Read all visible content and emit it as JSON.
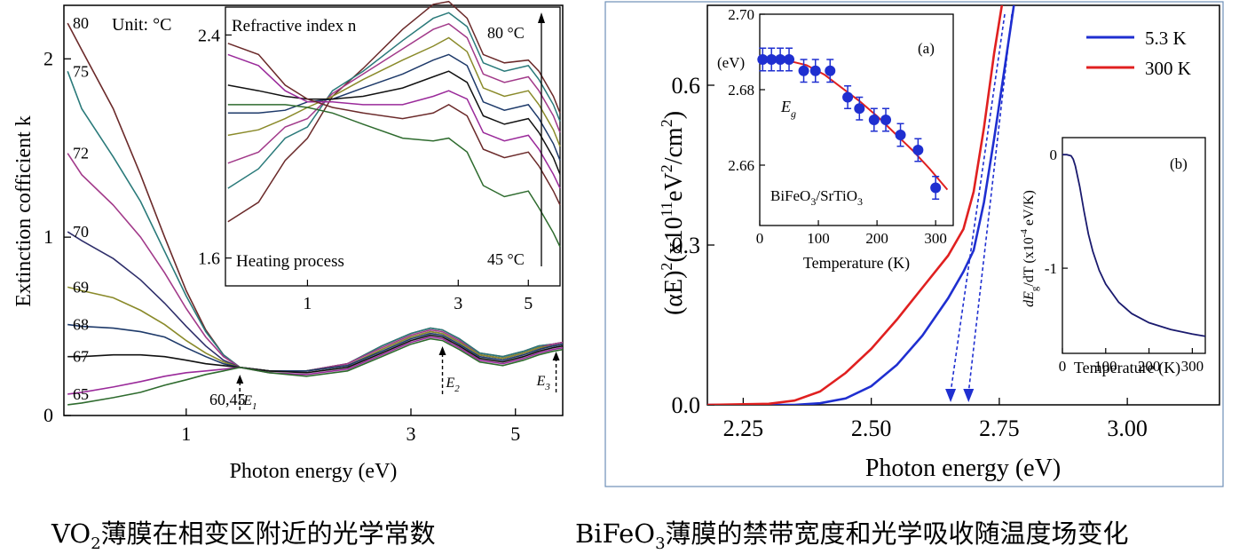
{
  "captions": {
    "left_pre": "VO",
    "left_sub": "2",
    "left_post": "薄膜在相变区附近的光学常数",
    "right_pre": "BiFeO",
    "right_sub": "3",
    "right_post": "薄膜的禁带宽度和光学吸收随温度场变化"
  },
  "chart_data": [
    {
      "id": "vo2_k",
      "type": "line",
      "xlabel": "Photon energy (eV)",
      "ylabel": "Extinction cofficient k",
      "xscale": "log",
      "xlim": [
        0.55,
        6.3
      ],
      "ylim": [
        0,
        2.3
      ],
      "xticks": [
        {
          "v": 1,
          "label": "1"
        },
        {
          "v": 3,
          "label": "3"
        },
        {
          "v": 5,
          "label": "5"
        }
      ],
      "yticks": [
        {
          "v": 0,
          "label": "0"
        },
        {
          "v": 1,
          "label": "1"
        },
        {
          "v": 2,
          "label": "2"
        }
      ],
      "unit_note": "Unit: °C",
      "x": [
        0.56,
        0.6,
        0.7,
        0.8,
        0.9,
        1.0,
        1.1,
        1.2,
        1.3,
        1.5,
        1.8,
        2.2,
        2.6,
        3.0,
        3.3,
        3.5,
        3.8,
        4.2,
        4.7,
        5.2,
        5.6,
        6.0,
        6.3
      ],
      "series": [
        {
          "name": "80",
          "color": "#6b2a2a",
          "values": [
            2.2,
            2.05,
            1.72,
            1.35,
            1.0,
            0.7,
            0.48,
            0.34,
            0.27,
            0.25,
            0.25,
            0.29,
            0.39,
            0.46,
            0.49,
            0.48,
            0.43,
            0.35,
            0.33,
            0.36,
            0.39,
            0.4,
            0.41
          ]
        },
        {
          "name": "75",
          "color": "#2a7a7a",
          "values": [
            1.93,
            1.72,
            1.45,
            1.2,
            0.92,
            0.67,
            0.47,
            0.34,
            0.27,
            0.25,
            0.25,
            0.29,
            0.39,
            0.46,
            0.49,
            0.48,
            0.43,
            0.35,
            0.33,
            0.36,
            0.39,
            0.4,
            0.41
          ]
        },
        {
          "name": "72",
          "color": "#a23a8a",
          "values": [
            1.47,
            1.35,
            1.18,
            1.0,
            0.8,
            0.6,
            0.44,
            0.33,
            0.27,
            0.25,
            0.25,
            0.29,
            0.38,
            0.45,
            0.48,
            0.47,
            0.42,
            0.34,
            0.32,
            0.35,
            0.38,
            0.4,
            0.41
          ]
        },
        {
          "name": "70",
          "color": "#2e2e6a",
          "values": [
            1.03,
            0.98,
            0.88,
            0.76,
            0.63,
            0.5,
            0.39,
            0.31,
            0.27,
            0.25,
            0.25,
            0.28,
            0.37,
            0.44,
            0.47,
            0.46,
            0.41,
            0.34,
            0.32,
            0.35,
            0.38,
            0.39,
            0.4
          ]
        },
        {
          "name": "69",
          "color": "#8a8a2a",
          "values": [
            0.72,
            0.7,
            0.66,
            0.59,
            0.51,
            0.42,
            0.35,
            0.3,
            0.27,
            0.25,
            0.25,
            0.28,
            0.37,
            0.44,
            0.47,
            0.46,
            0.41,
            0.34,
            0.32,
            0.35,
            0.38,
            0.39,
            0.4
          ]
        },
        {
          "name": "68",
          "color": "#1e3a6a",
          "values": [
            0.51,
            0.5,
            0.49,
            0.47,
            0.44,
            0.38,
            0.33,
            0.29,
            0.27,
            0.25,
            0.25,
            0.28,
            0.36,
            0.43,
            0.46,
            0.45,
            0.4,
            0.33,
            0.31,
            0.34,
            0.37,
            0.39,
            0.4
          ]
        },
        {
          "name": "67",
          "color": "#111111",
          "values": [
            0.33,
            0.33,
            0.34,
            0.34,
            0.33,
            0.31,
            0.29,
            0.28,
            0.27,
            0.25,
            0.24,
            0.27,
            0.35,
            0.42,
            0.45,
            0.44,
            0.39,
            0.32,
            0.3,
            0.33,
            0.36,
            0.38,
            0.39
          ]
        },
        {
          "name": "65",
          "color": "#9a2a9a",
          "values": [
            0.12,
            0.13,
            0.16,
            0.19,
            0.22,
            0.24,
            0.25,
            0.26,
            0.27,
            0.24,
            0.23,
            0.26,
            0.34,
            0.41,
            0.44,
            0.43,
            0.38,
            0.31,
            0.29,
            0.32,
            0.35,
            0.37,
            0.38
          ]
        },
        {
          "name": "60,45",
          "color": "#2e6b2e",
          "values": [
            0.06,
            0.07,
            0.1,
            0.13,
            0.17,
            0.2,
            0.23,
            0.25,
            0.27,
            0.24,
            0.22,
            0.25,
            0.33,
            0.4,
            0.43,
            0.42,
            0.37,
            0.3,
            0.28,
            0.31,
            0.34,
            0.36,
            0.37
          ]
        }
      ],
      "annotations": [
        {
          "text": "E",
          "sub": "1",
          "x": 1.3
        },
        {
          "text": "E",
          "sub": "2",
          "x": 3.5
        },
        {
          "text": "E",
          "sub": "3",
          "x": 6.1
        }
      ],
      "inset": {
        "title": "Refractive index n",
        "label_bottom": "Heating process",
        "label_top_right": "80 °C",
        "label_bottom_right": "45 °C",
        "xscale": "log",
        "xlim": [
          0.55,
          6.3
        ],
        "ylim": [
          1.5,
          2.5
        ],
        "xticks": [
          {
            "v": 1,
            "label": "1"
          },
          {
            "v": 3,
            "label": "3"
          },
          {
            "v": 5,
            "label": "5"
          }
        ],
        "yticks": [
          {
            "v": 1.6,
            "label": "1.6"
          },
          {
            "v": 2.4,
            "label": "2.4"
          }
        ],
        "x": [
          0.56,
          0.7,
          0.85,
          1.0,
          1.2,
          1.5,
          2.0,
          2.5,
          2.8,
          3.2,
          3.6,
          4.2,
          5.0,
          5.4,
          6.0,
          6.3
        ],
        "series": [
          {
            "color": "#6b2a2a",
            "values": [
              1.73,
              1.8,
              1.95,
              2.03,
              2.18,
              2.28,
              2.42,
              2.51,
              2.52,
              2.46,
              2.33,
              2.3,
              2.31,
              2.27,
              2.18,
              2.12
            ]
          },
          {
            "color": "#2a7a7a",
            "values": [
              1.85,
              1.92,
              2.03,
              2.07,
              2.2,
              2.27,
              2.38,
              2.46,
              2.48,
              2.43,
              2.3,
              2.27,
              2.29,
              2.24,
              2.15,
              2.09
            ]
          },
          {
            "color": "#a23a8a",
            "values": [
              1.94,
              1.98,
              2.07,
              2.1,
              2.19,
              2.26,
              2.35,
              2.42,
              2.44,
              2.39,
              2.26,
              2.23,
              2.25,
              2.2,
              2.11,
              2.05
            ]
          },
          {
            "color": "#8a8a2a",
            "values": [
              2.04,
              2.06,
              2.1,
              2.14,
              2.18,
              2.24,
              2.31,
              2.36,
              2.39,
              2.34,
              2.21,
              2.18,
              2.2,
              2.15,
              2.06,
              2.0
            ]
          },
          {
            "color": "#1e3a6a",
            "values": [
              2.12,
              2.12,
              2.13,
              2.16,
              2.17,
              2.21,
              2.26,
              2.31,
              2.33,
              2.29,
              2.16,
              2.13,
              2.15,
              2.1,
              2.01,
              1.95
            ]
          },
          {
            "color": "#111111",
            "values": [
              2.22,
              2.2,
              2.18,
              2.17,
              2.17,
              2.18,
              2.21,
              2.25,
              2.27,
              2.23,
              2.11,
              2.08,
              2.1,
              2.05,
              1.96,
              1.9
            ]
          },
          {
            "color": "#9a2a9a",
            "values": [
              2.33,
              2.29,
              2.2,
              2.16,
              2.16,
              2.15,
              2.15,
              2.18,
              2.2,
              2.17,
              2.05,
              2.02,
              2.04,
              1.99,
              1.9,
              1.85
            ]
          },
          {
            "color": "#6b2a2a",
            "values": [
              2.37,
              2.33,
              2.22,
              2.17,
              2.14,
              2.12,
              2.1,
              2.12,
              2.15,
              2.11,
              1.99,
              1.96,
              1.98,
              1.93,
              1.84,
              1.79
            ]
          },
          {
            "color": "#2e6b2e",
            "values": [
              2.15,
              2.15,
              2.15,
              2.14,
              2.12,
              2.08,
              2.03,
              2.02,
              2.03,
              1.98,
              1.86,
              1.82,
              1.84,
              1.78,
              1.69,
              1.64
            ]
          }
        ]
      }
    },
    {
      "id": "bfo_abs",
      "type": "line",
      "xlabel": "Photon energy (eV)",
      "ylabel_main": "(αE)",
      "ylabel_rest": "(x10",
      "ylabel_exp": "11",
      "ylabel_unit": "eV",
      "ylabel_unit_exp": "2",
      "ylabel_tail": "/cm",
      "ylabel_tail_exp": "2",
      "ylabel_close": ")",
      "xlim": [
        2.18,
        3.18
      ],
      "ylim": [
        0,
        0.75
      ],
      "xticks": [
        {
          "v": 2.25,
          "label": "2.25"
        },
        {
          "v": 2.5,
          "label": "2.50"
        },
        {
          "v": 2.75,
          "label": "2.75"
        },
        {
          "v": 3.0,
          "label": "3.00"
        }
      ],
      "yticks": [
        {
          "v": 0,
          "label": "0.0"
        },
        {
          "v": 0.3,
          "label": "0.3"
        },
        {
          "v": 0.6,
          "label": "0.6"
        }
      ],
      "x": [
        2.18,
        2.3,
        2.35,
        2.4,
        2.45,
        2.5,
        2.55,
        2.6,
        2.65,
        2.68,
        2.7,
        2.72,
        2.74,
        2.76,
        2.78
      ],
      "series": [
        {
          "name": "5.3 K",
          "color": "#1f2fd0",
          "values": [
            0,
            0,
            0.0,
            0.003,
            0.012,
            0.035,
            0.075,
            0.13,
            0.2,
            0.25,
            0.29,
            0.38,
            0.5,
            0.63,
            0.76
          ]
        },
        {
          "name": "300 K",
          "color": "#e02020",
          "values": [
            0,
            0.002,
            0.008,
            0.025,
            0.06,
            0.105,
            0.16,
            0.22,
            0.28,
            0.33,
            0.4,
            0.52,
            0.66,
            0.78,
            0.9
          ]
        }
      ],
      "arrows": [
        {
          "x": 2.655
        },
        {
          "x": 2.69
        }
      ],
      "inset_a": {
        "tag": "(a)",
        "ylabel": "(eV)",
        "label_eg": "E",
        "label_eg_sub": "g",
        "sample_pre": "BiFeO",
        "sample_sub1": "3",
        "sample_mid": "/SrTiO",
        "sample_sub2": "3",
        "xlabel": "Temperature (K)",
        "xlim": [
          0,
          330
        ],
        "ylim": [
          2.644,
          2.7
        ],
        "xticks": [
          {
            "v": 0,
            "label": "0"
          },
          {
            "v": 100,
            "label": "100"
          },
          {
            "v": 200,
            "label": "200"
          },
          {
            "v": 300,
            "label": "300"
          }
        ],
        "yticks": [
          {
            "v": 2.66,
            "label": "2.66"
          },
          {
            "v": 2.68,
            "label": "2.68"
          },
          {
            "v": 2.7,
            "label": "2.70"
          }
        ],
        "points": [
          {
            "x": 5,
            "y": 2.688
          },
          {
            "x": 20,
            "y": 2.688
          },
          {
            "x": 35,
            "y": 2.688
          },
          {
            "x": 50,
            "y": 2.688
          },
          {
            "x": 75,
            "y": 2.685
          },
          {
            "x": 95,
            "y": 2.685
          },
          {
            "x": 120,
            "y": 2.685
          },
          {
            "x": 150,
            "y": 2.678
          },
          {
            "x": 170,
            "y": 2.675
          },
          {
            "x": 195,
            "y": 2.672
          },
          {
            "x": 215,
            "y": 2.672
          },
          {
            "x": 240,
            "y": 2.668
          },
          {
            "x": 270,
            "y": 2.664
          },
          {
            "x": 300,
            "y": 2.654
          }
        ],
        "err": 0.003,
        "fit_x": [
          0,
          40,
          80,
          110,
          140,
          170,
          200,
          230,
          260,
          290,
          320
        ],
        "fit_y": [
          2.688,
          2.688,
          2.6865,
          2.684,
          2.6805,
          2.677,
          2.673,
          2.6685,
          2.664,
          2.659,
          2.6535
        ]
      },
      "inset_b": {
        "tag": "(b)",
        "ylabel_pre": "dE",
        "ylabel_sub": "g",
        "ylabel_post": "/dT (x10",
        "ylabel_exp": "-4",
        "ylabel_unit": " eV/K)",
        "xlabel": "Temperature (K)",
        "xlim": [
          0,
          330
        ],
        "ylim": [
          -1.75,
          0.15
        ],
        "xticks": [
          {
            "v": 0,
            "label": "0"
          },
          {
            "v": 100,
            "label": "100"
          },
          {
            "v": 200,
            "label": "200"
          },
          {
            "v": 300,
            "label": "300"
          }
        ],
        "yticks": [
          {
            "v": 0,
            "label": "0"
          },
          {
            "v": -1,
            "label": "-1"
          }
        ],
        "x": [
          0,
          10,
          20,
          25,
          30,
          40,
          50,
          60,
          70,
          85,
          100,
          130,
          160,
          200,
          250,
          300,
          330
        ],
        "y": [
          0,
          0,
          -0.01,
          -0.04,
          -0.1,
          -0.28,
          -0.5,
          -0.7,
          -0.85,
          -1.02,
          -1.14,
          -1.3,
          -1.4,
          -1.48,
          -1.54,
          -1.58,
          -1.6
        ]
      }
    }
  ]
}
